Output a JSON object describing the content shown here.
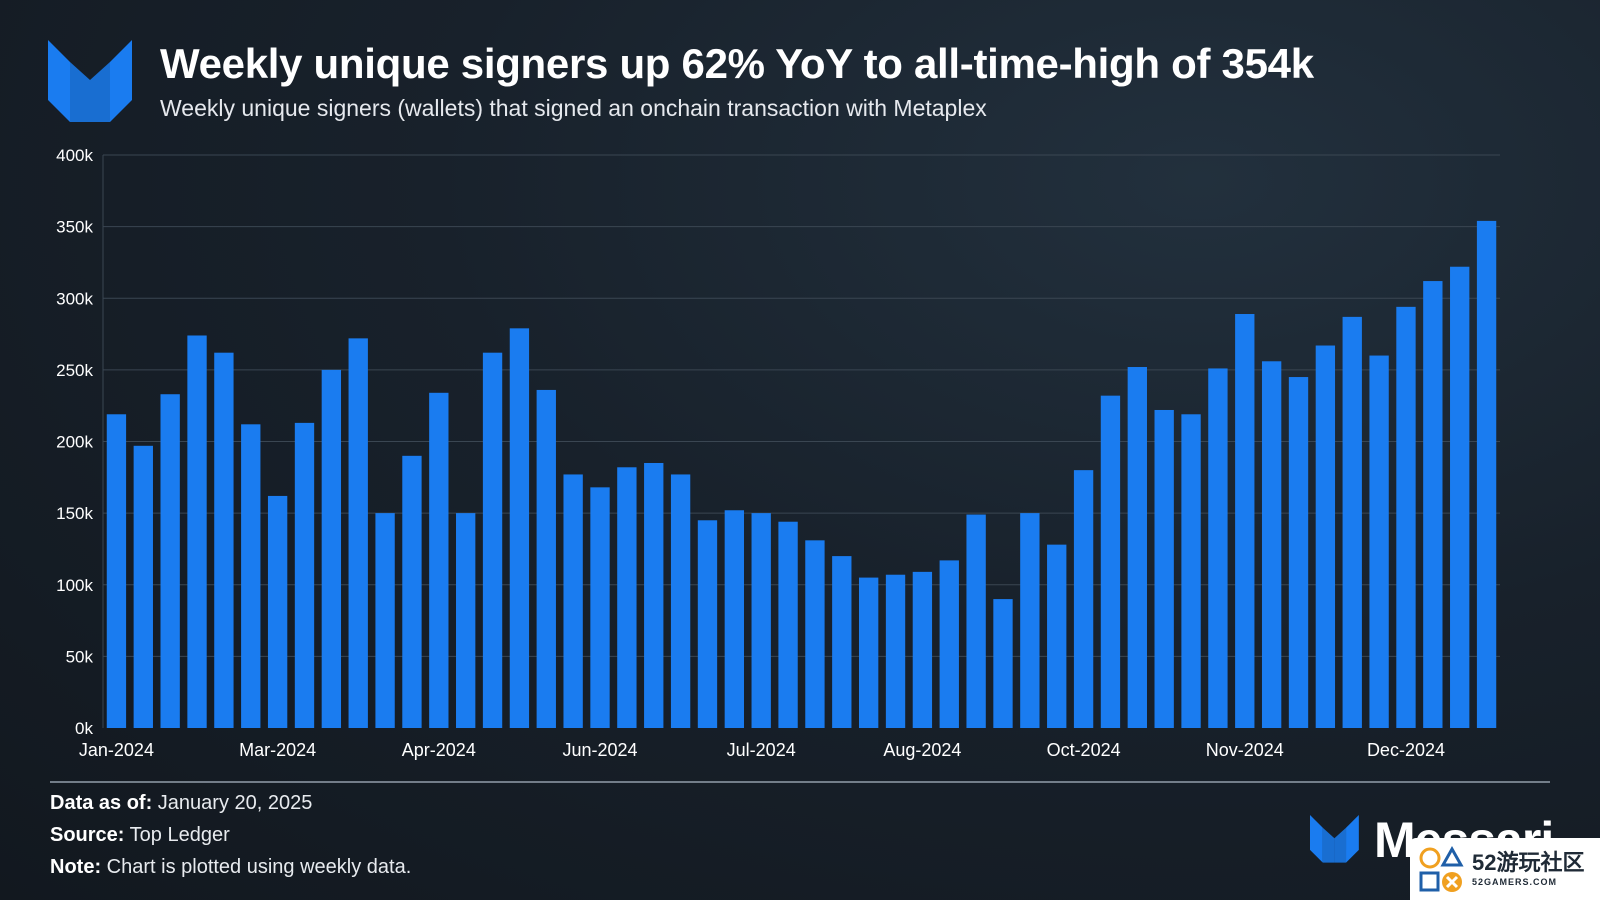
{
  "header": {
    "title": "Weekly unique signers up 62% YoY to all-time-high of 354k",
    "subtitle": "Weekly unique signers (wallets) that signed an onchain transaction with Metaplex",
    "logo_icon": "metaplex-logo-icon"
  },
  "footer": {
    "data_as_of_label": "Data as of:",
    "data_as_of_value": " January 20, 2025",
    "source_label": "Source:",
    "source_value": " Top Ledger",
    "note_label": "Note:",
    "note_value": " Chart is plotted using weekly data.",
    "brand_name": "Messari",
    "brand_icon": "messari-logo-icon"
  },
  "watermark": {
    "main": "52游玩社区",
    "sub": "52GAMERS.COM",
    "icon": "controller-buttons-icon"
  },
  "colors": {
    "bar": "#1a7cf0",
    "grid": "#3a4652",
    "text": "#ffffff"
  },
  "chart_data": {
    "type": "bar",
    "title": "Weekly unique signers up 62% YoY to all-time-high of 354k",
    "subtitle": "Weekly unique signers (wallets) that signed an onchain transaction with Metaplex",
    "xlabel": "",
    "ylabel": "",
    "ylim": [
      0,
      400000
    ],
    "y_ticks": [
      0,
      50000,
      100000,
      150000,
      200000,
      250000,
      300000,
      350000,
      400000
    ],
    "y_tick_labels": [
      "0k",
      "50k",
      "100k",
      "150k",
      "200k",
      "250k",
      "300k",
      "350k",
      "400k"
    ],
    "x_tick_labels": [
      {
        "label": "Jan-2024",
        "index": 0
      },
      {
        "label": "Mar-2024",
        "index": 6
      },
      {
        "label": "Apr-2024",
        "index": 12
      },
      {
        "label": "Jun-2024",
        "index": 18
      },
      {
        "label": "Jul-2024",
        "index": 24
      },
      {
        "label": "Aug-2024",
        "index": 30
      },
      {
        "label": "Oct-2024",
        "index": 36
      },
      {
        "label": "Nov-2024",
        "index": 42
      },
      {
        "label": "Dec-2024",
        "index": 48
      }
    ],
    "grid": true,
    "legend": "none",
    "values": [
      219000,
      197000,
      233000,
      274000,
      262000,
      212000,
      162000,
      213000,
      250000,
      272000,
      150000,
      190000,
      234000,
      150000,
      262000,
      279000,
      236000,
      177000,
      168000,
      182000,
      185000,
      177000,
      145000,
      152000,
      150000,
      144000,
      131000,
      120000,
      105000,
      107000,
      109000,
      117000,
      149000,
      90000,
      150000,
      128000,
      180000,
      232000,
      252000,
      222000,
      219000,
      251000,
      289000,
      256000,
      245000,
      267000,
      287000,
      260000,
      294000,
      312000,
      322000,
      354000
    ]
  }
}
